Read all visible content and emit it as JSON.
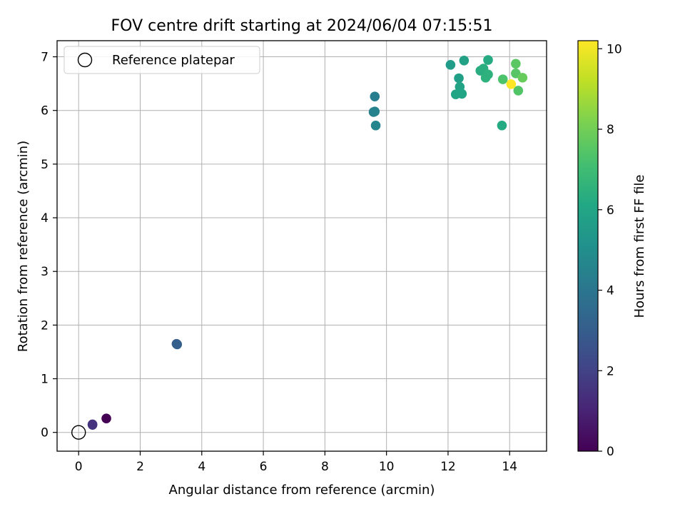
{
  "chart_data": {
    "type": "scatter",
    "title": "FOV centre drift starting at 2024/06/04 07:15:51",
    "xlabel": "Angular distance from reference (arcmin)",
    "ylabel": "Rotation from reference (arcmin)",
    "xlim": [
      -0.7,
      15.2
    ],
    "ylim": [
      -0.35,
      7.3
    ],
    "xticks": [
      0,
      2,
      4,
      6,
      8,
      10,
      12,
      14
    ],
    "yticks": [
      0,
      1,
      2,
      3,
      4,
      5,
      6,
      7
    ],
    "grid": true,
    "legend": {
      "location": "upper-left",
      "entries": [
        "Reference platepar"
      ]
    },
    "reference_point": {
      "x": 0,
      "y": 0,
      "label": "Reference platepar"
    },
    "colorbar": {
      "label": "Hours from first FF file",
      "range": [
        0,
        10.2
      ],
      "ticks": [
        0,
        2,
        4,
        6,
        8,
        10
      ],
      "colormap": "viridis"
    },
    "points": [
      {
        "x": 0.9,
        "y": 0.26,
        "c": 0.0
      },
      {
        "x": 0.45,
        "y": 0.14,
        "c": 1.7
      },
      {
        "x": 0.45,
        "y": 0.15,
        "c": 1.5
      },
      {
        "x": 3.18,
        "y": 1.65,
        "c": 3.0
      },
      {
        "x": 3.2,
        "y": 1.64,
        "c": 3.1
      },
      {
        "x": 9.62,
        "y": 6.26,
        "c": 4.3
      },
      {
        "x": 9.58,
        "y": 5.97,
        "c": 4.4
      },
      {
        "x": 9.62,
        "y": 5.98,
        "c": 4.5
      },
      {
        "x": 9.65,
        "y": 5.72,
        "c": 4.6
      },
      {
        "x": 12.08,
        "y": 6.85,
        "c": 5.6
      },
      {
        "x": 12.52,
        "y": 6.93,
        "c": 5.8
      },
      {
        "x": 12.35,
        "y": 6.6,
        "c": 5.7
      },
      {
        "x": 12.38,
        "y": 6.44,
        "c": 5.9
      },
      {
        "x": 12.25,
        "y": 6.3,
        "c": 6.0
      },
      {
        "x": 12.45,
        "y": 6.31,
        "c": 6.0
      },
      {
        "x": 13.3,
        "y": 6.94,
        "c": 6.2
      },
      {
        "x": 13.05,
        "y": 6.74,
        "c": 6.3
      },
      {
        "x": 13.15,
        "y": 6.78,
        "c": 6.4
      },
      {
        "x": 13.3,
        "y": 6.67,
        "c": 6.5
      },
      {
        "x": 13.22,
        "y": 6.61,
        "c": 6.5
      },
      {
        "x": 13.75,
        "y": 5.72,
        "c": 6.2
      },
      {
        "x": 13.78,
        "y": 6.58,
        "c": 7.3
      },
      {
        "x": 14.2,
        "y": 6.87,
        "c": 7.6
      },
      {
        "x": 14.2,
        "y": 6.69,
        "c": 7.5
      },
      {
        "x": 14.42,
        "y": 6.61,
        "c": 7.8
      },
      {
        "x": 14.28,
        "y": 6.37,
        "c": 7.4
      },
      {
        "x": 14.05,
        "y": 6.49,
        "c": 10.2
      }
    ]
  }
}
